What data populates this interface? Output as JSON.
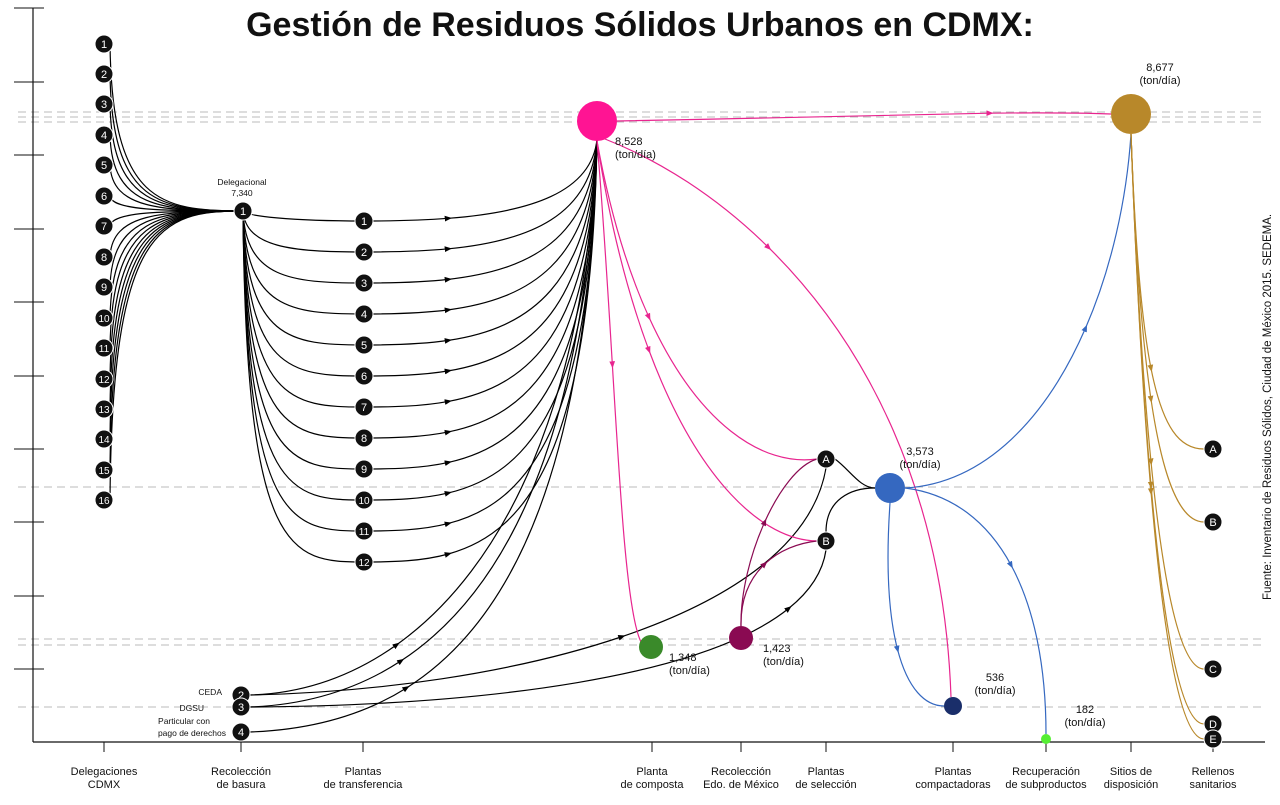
{
  "title": "Gestión de Residuos Sólidos Urbanos en CDMX:",
  "source": "Fuente: Inventario de Residuos Sólidos, Ciudad de México 2015. SEDEMA.",
  "colors": {
    "black": "#000000",
    "main": "#ff1493",
    "main_link": "#e8258f",
    "disposal": "#b8882a",
    "selection": "#3568c0",
    "compost": "#3a8a2a",
    "edomex": "#8a0a52",
    "compactadoras": "#1a2e6a",
    "subproductos": "#55ee33"
  },
  "columns": [
    {
      "id": "delegaciones",
      "label1": "Delegaciones",
      "label2": "CDMX"
    },
    {
      "id": "recoleccion",
      "label1": "Recolección",
      "label2": "de basura"
    },
    {
      "id": "transferencia",
      "label1": "Plantas",
      "label2": "de transferencia"
    },
    {
      "id": "composta",
      "label1": "Planta",
      "label2": "de composta"
    },
    {
      "id": "edomex",
      "label1": "Recolección",
      "label2": "Edo. de México"
    },
    {
      "id": "seleccion",
      "label1": "Plantas",
      "label2": "de selección"
    },
    {
      "id": "compactadoras",
      "label1": "Plantas",
      "label2": "compactadoras"
    },
    {
      "id": "subproductos",
      "label1": "Recuperación",
      "label2": "de subproductos"
    },
    {
      "id": "disposicion",
      "label1": "Sitios de",
      "label2": "disposición"
    },
    {
      "id": "rellenos",
      "label1": "Rellenos",
      "label2": "sanitarios"
    }
  ],
  "delegaciones": [
    "1",
    "2",
    "3",
    "4",
    "5",
    "6",
    "7",
    "8",
    "9",
    "10",
    "11",
    "12",
    "13",
    "14",
    "15",
    "16"
  ],
  "recoleccion": [
    {
      "id": "1",
      "label1": "Delegacional",
      "label2": "7,340"
    },
    {
      "id": "2",
      "label1": "CEDA",
      "label2": ""
    },
    {
      "id": "3",
      "label1": "DGSU",
      "label2": ""
    },
    {
      "id": "4",
      "label1": "Particular con",
      "label2": "pago de derechos"
    }
  ],
  "transferencia": [
    "1",
    "2",
    "3",
    "4",
    "5",
    "6",
    "7",
    "8",
    "9",
    "10",
    "11",
    "12"
  ],
  "seleccion": [
    "A",
    "B"
  ],
  "rellenos": [
    "A",
    "B",
    "C",
    "D",
    "E"
  ],
  "hubs": {
    "main": {
      "value": "8,528",
      "unit": "(ton/día)"
    },
    "disposicion": {
      "value": "8,677",
      "unit": "(ton/día)"
    },
    "seleccion": {
      "value": "3,573",
      "unit": "(ton/día)"
    },
    "composta": {
      "value": "1,348",
      "unit": "(ton/día)"
    },
    "edomex": {
      "value": "1,423",
      "unit": "(ton/día)"
    },
    "compactadoras": {
      "value": "536",
      "unit": "(ton/día)"
    },
    "subproductos": {
      "value": "182",
      "unit": "(ton/día)"
    }
  }
}
